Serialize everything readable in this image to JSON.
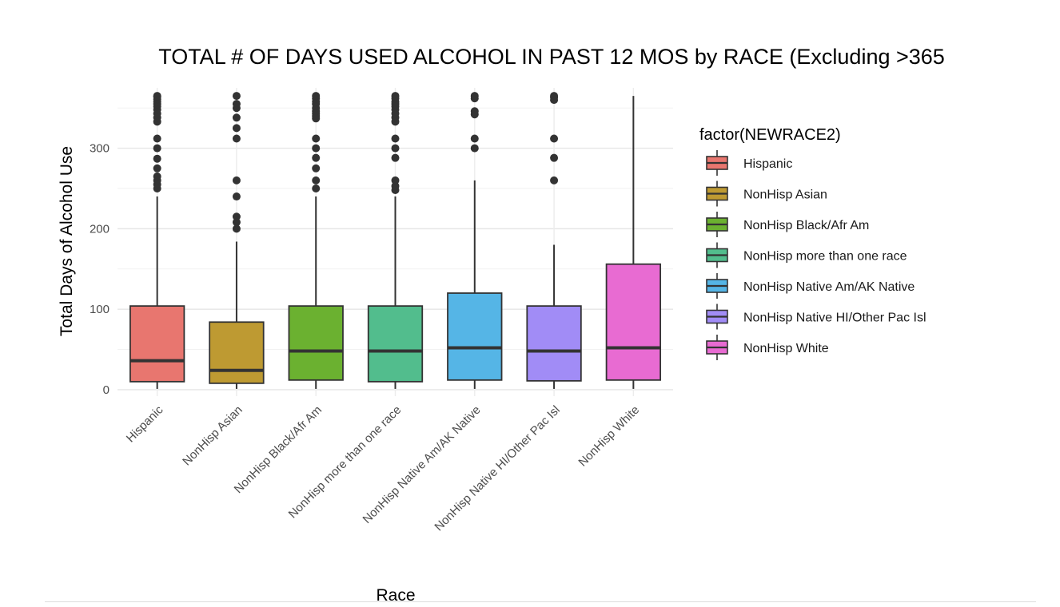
{
  "chart_data": {
    "type": "boxplot",
    "title": "TOTAL # OF DAYS USED ALCOHOL IN PAST 12 MOS by RACE (Excluding >365",
    "xlabel": "Race",
    "ylabel": "Total Days of Alcohol Use",
    "ylim": [
      -8,
      375
    ],
    "yticks": [
      0,
      100,
      200,
      300
    ],
    "grid": true,
    "legend": {
      "title": "factor(NEWRACE2)",
      "position": "right"
    },
    "categories": [
      "Hispanic",
      "NonHisp Asian",
      "NonHisp Black/Afr Am",
      "NonHisp more than one race",
      "NonHisp Native Am/AK Native",
      "NonHisp Native HI/Other Pac Isl",
      "NonHisp White"
    ],
    "series": [
      {
        "name": "Hispanic",
        "color": "#E8766F",
        "stats": {
          "lower_whisker": 1,
          "q1": 10,
          "median": 36,
          "q3": 104,
          "upper_whisker": 240
        },
        "outliers": [
          250,
          255,
          260,
          265,
          275,
          287,
          300,
          312,
          333,
          338,
          343,
          348,
          352,
          355,
          358,
          361,
          364,
          365
        ]
      },
      {
        "name": "NonHisp Asian",
        "color": "#BE9A32",
        "stats": {
          "lower_whisker": 1,
          "q1": 8,
          "median": 24,
          "q3": 84,
          "upper_whisker": 184
        },
        "outliers": [
          200,
          208,
          215,
          240,
          260,
          312,
          325,
          338,
          350,
          355,
          365
        ]
      },
      {
        "name": "NonHisp Black/Afr Am",
        "color": "#6BB130",
        "stats": {
          "lower_whisker": 1,
          "q1": 12,
          "median": 48,
          "q3": 104,
          "upper_whisker": 240
        },
        "outliers": [
          250,
          260,
          275,
          288,
          300,
          312,
          337,
          340,
          343,
          346,
          350,
          355,
          358,
          362,
          365
        ]
      },
      {
        "name": "NonHisp more than one race",
        "color": "#52BD8D",
        "stats": {
          "lower_whisker": 1,
          "q1": 10,
          "median": 48,
          "q3": 104,
          "upper_whisker": 240
        },
        "outliers": [
          248,
          253,
          260,
          288,
          300,
          312,
          333,
          338,
          343,
          348,
          352,
          355,
          358,
          362,
          365
        ]
      },
      {
        "name": "NonHisp Native Am/AK Native",
        "color": "#55B5E6",
        "stats": {
          "lower_whisker": 1,
          "q1": 12,
          "median": 52,
          "q3": 120,
          "upper_whisker": 260
        },
        "outliers": [
          300,
          312,
          342,
          346,
          362,
          365
        ]
      },
      {
        "name": "NonHisp Native HI/Other Pac Isl",
        "color": "#A18CF6",
        "stats": {
          "lower_whisker": 1,
          "q1": 11,
          "median": 48,
          "q3": 104,
          "upper_whisker": 180
        },
        "outliers": [
          260,
          288,
          312,
          360,
          363,
          365
        ]
      },
      {
        "name": "NonHisp White",
        "color": "#E86BD2",
        "stats": {
          "lower_whisker": 1,
          "q1": 12,
          "median": 52,
          "q3": 156,
          "upper_whisker": 365
        },
        "outliers": []
      }
    ]
  }
}
